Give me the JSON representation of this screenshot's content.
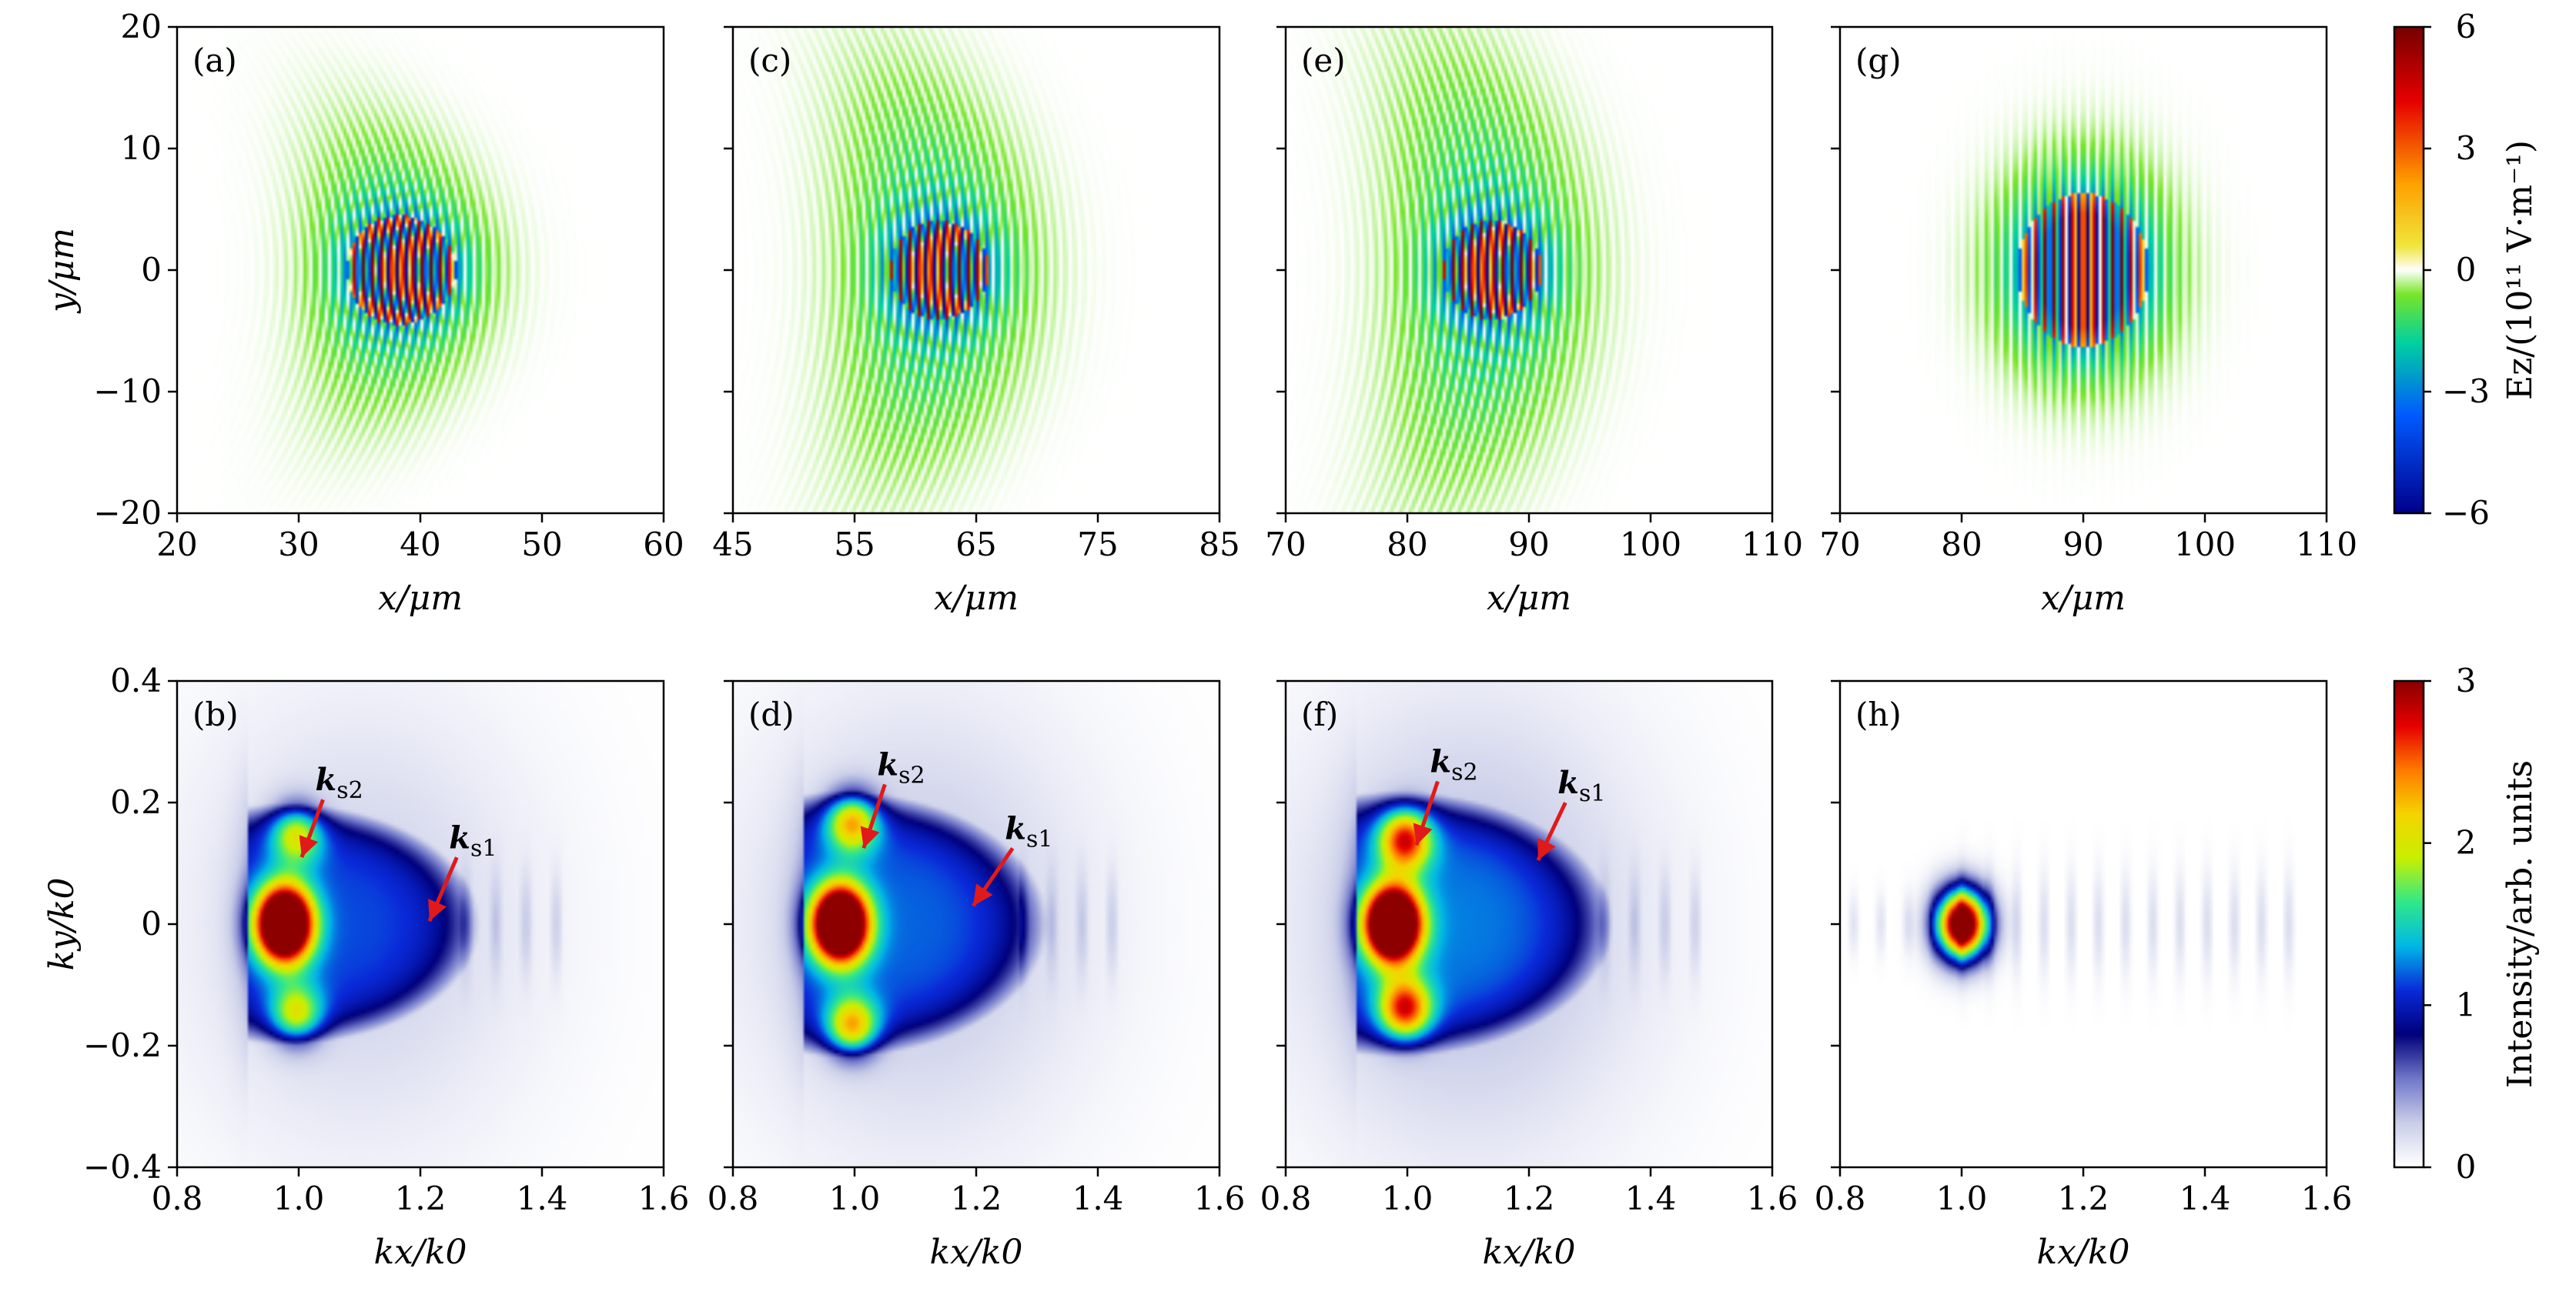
{
  "colors": {
    "colormap": [
      "#ffffff",
      "#c9cde8",
      "#6f76c9",
      "#00007a",
      "#0a2ad9",
      "#00b8e6",
      "#31e88a",
      "#c8f000",
      "#f5d400",
      "#ff7b00",
      "#e60000",
      "#8c0000"
    ],
    "arrow": "#e01a1a",
    "field_green": "#4cd300",
    "field_dark": "#3a0d3a"
  },
  "chart_data": [
    {
      "id": "a",
      "panel_label": "(a)",
      "type": "heatmap",
      "quantity": "E_z field (laser pulse)",
      "xlabel": "x/μm",
      "ylabel": "y/μm",
      "xlim": [
        20,
        60
      ],
      "ylim": [
        -20,
        20
      ],
      "xticks": [
        "20",
        "30",
        "40",
        "50",
        "60"
      ],
      "yticks": [
        "20",
        "10",
        "0",
        "−10",
        "−20"
      ],
      "show_yticklabels": true,
      "pulse": {
        "center_x": 38.5,
        "center_y": 0,
        "half_width_x": 11,
        "half_height_y": 16,
        "core_half_width_x": 5,
        "core_half_height_y": 5,
        "curvature": 0.018,
        "wavelength_um": 0.8
      }
    },
    {
      "id": "c",
      "panel_label": "(c)",
      "type": "heatmap",
      "quantity": "E_z field (laser pulse)",
      "xlabel": "x/μm",
      "ylabel": "",
      "xlim": [
        45,
        85
      ],
      "ylim": [
        -20,
        20
      ],
      "xticks": [
        "45",
        "55",
        "65",
        "75",
        "85"
      ],
      "yticks": [
        "",
        "",
        "",
        "",
        ""
      ],
      "show_yticklabels": false,
      "pulse": {
        "center_x": 62,
        "center_y": 0,
        "half_width_x": 12,
        "half_height_y": 22,
        "core_half_width_x": 4.5,
        "core_half_height_y": 4.5,
        "curvature": 0.012,
        "wavelength_um": 0.8
      }
    },
    {
      "id": "e",
      "panel_label": "(e)",
      "type": "heatmap",
      "quantity": "E_z field (laser pulse)",
      "xlabel": "x/μm",
      "ylabel": "",
      "xlim": [
        70,
        110
      ],
      "ylim": [
        -20,
        20
      ],
      "xticks": [
        "70",
        "80",
        "90",
        "100",
        "110"
      ],
      "yticks": [
        "",
        "",
        "",
        "",
        ""
      ],
      "show_yticklabels": false,
      "pulse": {
        "center_x": 87,
        "center_y": 0,
        "half_width_x": 12,
        "half_height_y": 24,
        "core_half_width_x": 4.5,
        "core_half_height_y": 4.5,
        "curvature": 0.011,
        "wavelength_um": 0.8
      }
    },
    {
      "id": "g",
      "panel_label": "(g)",
      "type": "heatmap",
      "quantity": "E_z field (laser pulse)",
      "xlabel": "x/μm",
      "ylabel": "",
      "xlim": [
        70,
        110
      ],
      "ylim": [
        -20,
        20
      ],
      "xticks": [
        "70",
        "80",
        "90",
        "100",
        "110"
      ],
      "yticks": [
        "",
        "",
        "",
        "",
        ""
      ],
      "show_yticklabels": false,
      "pulse": {
        "center_x": 90,
        "center_y": 0,
        "half_width_x": 10,
        "half_height_y": 13,
        "core_half_width_x": 6,
        "core_half_height_y": 7,
        "curvature": 0,
        "wavelength_um": 0.8
      }
    },
    {
      "id": "b",
      "panel_label": "(b)",
      "type": "heatmap",
      "quantity": "Spectral intensity",
      "xlabel": "kx/k0",
      "ylabel": "ky/k0",
      "xlim": [
        0.8,
        1.6
      ],
      "ylim": [
        -0.4,
        0.4
      ],
      "xticks": [
        "0.8",
        "1.0",
        "1.2",
        "1.4",
        "1.6"
      ],
      "yticks": [
        "0.4",
        "0.2",
        "0",
        "−0.2",
        "−0.4"
      ],
      "show_yticklabels": true,
      "spectrum": {
        "peak_kx": 0.975,
        "peak_ky": 0,
        "body_extent_kx": 1.3,
        "body_half_height_ky": 0.2,
        "lobe_ky": 0.15,
        "lobe_strength": 1.1,
        "halo_strength": 0.25,
        "sideband_spacing": 0.05,
        "sideband_end_kx": 1.45
      },
      "annotations": [
        {
          "label": "k",
          "subscript": "s2",
          "text_k": [
            1.05,
            0.22
          ],
          "tip_k": [
            1.005,
            0.11
          ]
        },
        {
          "label": "k",
          "subscript": "s1",
          "text_k": [
            1.27,
            0.125
          ],
          "tip_k": [
            1.215,
            0.005
          ]
        }
      ]
    },
    {
      "id": "d",
      "panel_label": "(d)",
      "type": "heatmap",
      "quantity": "Spectral intensity",
      "xlabel": "kx/k0",
      "ylabel": "",
      "xlim": [
        0.8,
        1.6
      ],
      "ylim": [
        -0.4,
        0.4
      ],
      "xticks": [
        "0.8",
        "1.0",
        "1.2",
        "1.4",
        "1.6"
      ],
      "yticks": [
        "",
        "",
        "",
        "",
        ""
      ],
      "show_yticklabels": false,
      "spectrum": {
        "peak_kx": 0.975,
        "peak_ky": 0,
        "body_extent_kx": 1.32,
        "body_half_height_ky": 0.22,
        "lobe_ky": 0.17,
        "lobe_strength": 1.4,
        "halo_strength": 0.3,
        "sideband_spacing": 0.05,
        "sideband_end_kx": 1.45
      },
      "annotations": [
        {
          "label": "k",
          "subscript": "s2",
          "text_k": [
            1.06,
            0.245
          ],
          "tip_k": [
            1.015,
            0.125
          ]
        },
        {
          "label": "k",
          "subscript": "s1",
          "text_k": [
            1.27,
            0.14
          ],
          "tip_k": [
            1.195,
            0.03
          ]
        }
      ]
    },
    {
      "id": "f",
      "panel_label": "(f)",
      "type": "heatmap",
      "quantity": "Spectral intensity",
      "xlabel": "kx/k0",
      "ylabel": "",
      "xlim": [
        0.8,
        1.6
      ],
      "ylim": [
        -0.4,
        0.4
      ],
      "xticks": [
        "0.8",
        "1.0",
        "1.2",
        "1.4",
        "1.6"
      ],
      "yticks": [
        "",
        "",
        "",
        "",
        ""
      ],
      "show_yticklabels": false,
      "spectrum": {
        "peak_kx": 0.975,
        "peak_ky": 0,
        "body_extent_kx": 1.34,
        "body_half_height_ky": 0.22,
        "lobe_ky": 0.14,
        "lobe_strength": 1.7,
        "halo_strength": 0.35,
        "sideband_spacing": 0.05,
        "sideband_end_kx": 1.5
      },
      "annotations": [
        {
          "label": "k",
          "subscript": "s2",
          "text_k": [
            1.06,
            0.25
          ],
          "tip_k": [
            1.015,
            0.13
          ]
        },
        {
          "label": "k",
          "subscript": "s1",
          "text_k": [
            1.27,
            0.215
          ],
          "tip_k": [
            1.215,
            0.105
          ]
        }
      ]
    },
    {
      "id": "h",
      "panel_label": "(h)",
      "type": "heatmap",
      "quantity": "Spectral intensity",
      "xlabel": "kx/k0",
      "ylabel": "",
      "xlim": [
        0.8,
        1.6
      ],
      "ylim": [
        -0.4,
        0.4
      ],
      "xticks": [
        "0.8",
        "1.0",
        "1.2",
        "1.4",
        "1.6"
      ],
      "yticks": [
        "",
        "",
        "",
        "",
        ""
      ],
      "show_yticklabels": false,
      "spectrum": {
        "peak_kx": 1.0,
        "peak_ky": 0,
        "body_extent_kx": 1.04,
        "body_half_height_ky": 0.055,
        "lobe_ky": 0,
        "lobe_strength": 0,
        "halo_strength": 0,
        "sideband_spacing": 0.045,
        "sideband_end_kx": 1.57
      },
      "annotations": []
    }
  ],
  "colorbars": [
    {
      "id": "field",
      "label": "Ez/(10¹¹ V·m⁻¹)",
      "ticks": [
        "6",
        "3",
        "0",
        "−3",
        "−6"
      ],
      "range": [
        -6,
        6
      ]
    },
    {
      "id": "intensity",
      "label": "Intensity/arb. units",
      "ticks": [
        "3",
        "2",
        "1",
        "0"
      ],
      "range": [
        0,
        3
      ]
    }
  ]
}
